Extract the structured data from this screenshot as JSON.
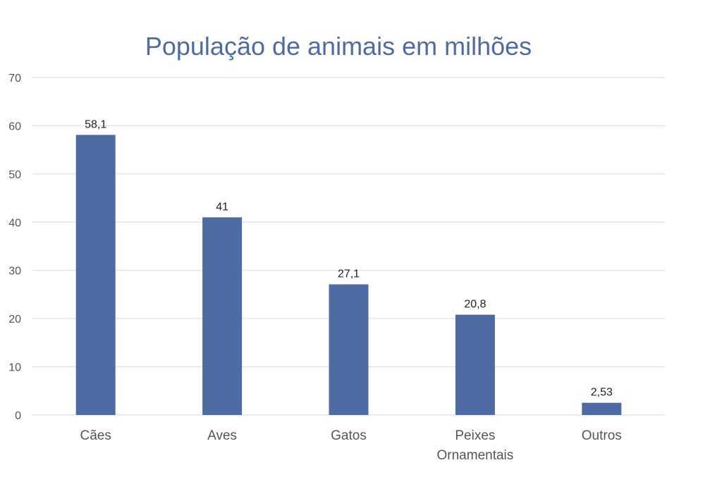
{
  "chart_data": {
    "type": "bar",
    "title": "População de animais em milhões",
    "categories": [
      [
        "Cães"
      ],
      [
        "Aves"
      ],
      [
        "Gatos"
      ],
      [
        "Peixes",
        "Ornamentais"
      ],
      [
        "Outros"
      ]
    ],
    "values": [
      58.1,
      41,
      27.1,
      20.8,
      2.53
    ],
    "value_labels": [
      "58,1",
      "41",
      "27,1",
      "20,8",
      "2,53"
    ],
    "ylim": [
      0,
      70
    ],
    "yticks": [
      0,
      10,
      20,
      30,
      40,
      50,
      60,
      70
    ],
    "grid": true,
    "bar_color": "#4e6ca3",
    "title_color": "#4e6ca3"
  }
}
